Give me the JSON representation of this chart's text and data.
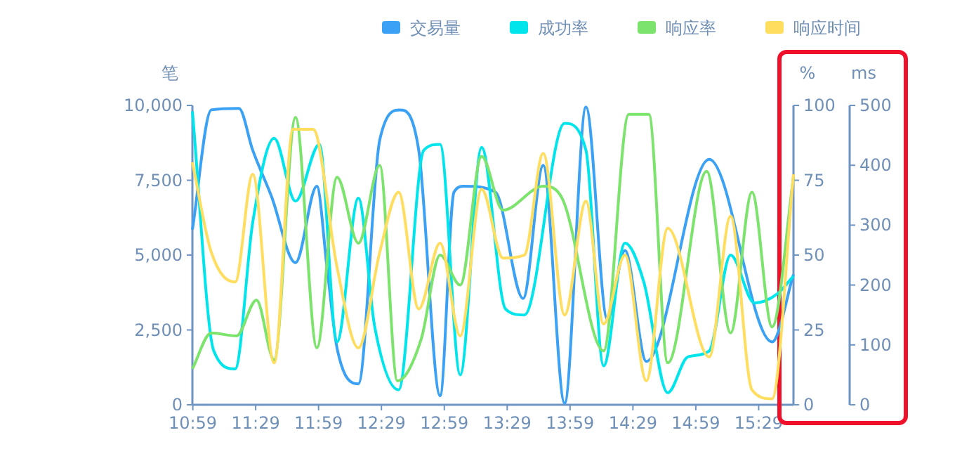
{
  "chart_data": {
    "type": "line",
    "ylabel": "笔",
    "y2label": "%",
    "y3label": "ms",
    "legend": "top",
    "marker": "none",
    "grid": false,
    "xlim": [
      10.98,
      15.76
    ],
    "xticks": [
      {
        "value": 10.9833,
        "label": "10:59"
      },
      {
        "value": 11.4833,
        "label": "11:29"
      },
      {
        "value": 11.9833,
        "label": "11:59"
      },
      {
        "value": 12.4833,
        "label": "12:29"
      },
      {
        "value": 12.9833,
        "label": "12:59"
      },
      {
        "value": 13.4833,
        "label": "13:29"
      },
      {
        "value": 13.9833,
        "label": "13:59"
      },
      {
        "value": 14.4833,
        "label": "14:29"
      },
      {
        "value": 14.9833,
        "label": "14:59"
      },
      {
        "value": 15.4833,
        "label": "15:29"
      }
    ],
    "ylim": [
      0,
      10000
    ],
    "yticks": [
      {
        "value": 0,
        "label": "0"
      },
      {
        "value": 2500,
        "label": "2,500"
      },
      {
        "value": 5000,
        "label": "5,000"
      },
      {
        "value": 7500,
        "label": "7,500"
      },
      {
        "value": 10000,
        "label": "10,000"
      }
    ],
    "y2lim": [
      0,
      100
    ],
    "y2ticks": [
      0,
      25,
      50,
      75,
      100
    ],
    "y3lim": [
      0,
      500
    ],
    "y3ticks": [
      0,
      100,
      200,
      300,
      400,
      500
    ],
    "series": [
      {
        "name": "交易量",
        "color": "#3ba1f5",
        "x": [
          10.98,
          11.13,
          11.35,
          11.46,
          11.61,
          11.8,
          11.97,
          12.05,
          12.13,
          12.3,
          12.47,
          12.63,
          12.78,
          12.95,
          13.06,
          13.14,
          13.39,
          13.61,
          13.77,
          13.94,
          14.11,
          14.28,
          14.42,
          14.59,
          15.09,
          15.59,
          15.76
        ],
        "values": [
          5850,
          9850,
          9900,
          8500,
          6950,
          4750,
          7300,
          4600,
          1900,
          700,
          8850,
          9850,
          8500,
          300,
          7100,
          7300,
          7100,
          3550,
          8000,
          50,
          9950,
          2850,
          5150,
          1450,
          8200,
          2100,
          4350
        ]
      },
      {
        "name": "成功率",
        "color": "#00e5ec",
        "x": [
          10.98,
          11.15,
          11.32,
          11.46,
          11.63,
          11.8,
          11.99,
          12.13,
          12.3,
          12.43,
          12.62,
          12.82,
          12.95,
          13.11,
          13.28,
          13.47,
          13.62,
          13.94,
          14.11,
          14.25,
          14.42,
          14.57,
          14.76,
          14.92,
          15.09,
          15.26,
          15.45,
          15.63,
          15.76
        ],
        "values": [
          98,
          18,
          12,
          61,
          89,
          68,
          87,
          21,
          69,
          26,
          5,
          85,
          87,
          10,
          86,
          32,
          30,
          94,
          85,
          13,
          54,
          41,
          4,
          16,
          18,
          50,
          34,
          37,
          43
        ],
        "axis": "y2"
      },
      {
        "name": "响应率",
        "color": "#7ce36c",
        "x": [
          10.98,
          11.13,
          11.33,
          11.49,
          11.63,
          11.8,
          11.97,
          12.13,
          12.3,
          12.47,
          12.61,
          12.8,
          12.95,
          13.11,
          13.28,
          13.45,
          13.77,
          13.92,
          14.25,
          14.45,
          14.61,
          14.76,
          15.07,
          15.26,
          15.43,
          15.59,
          15.76
        ],
        "values": [
          12,
          24,
          23,
          35,
          15,
          96,
          19,
          76,
          54,
          80,
          8,
          22,
          50,
          40,
          83,
          65,
          73,
          69,
          18,
          97,
          97,
          14,
          78,
          24,
          71,
          26,
          76
        ],
        "axis": "y2"
      },
      {
        "name": "响应时间",
        "color": "#fedd5f",
        "x": [
          10.98,
          11.13,
          11.32,
          11.46,
          11.63,
          11.78,
          11.94,
          12.13,
          12.3,
          12.47,
          12.62,
          12.78,
          12.95,
          13.11,
          13.28,
          13.45,
          13.62,
          13.77,
          13.94,
          14.11,
          14.25,
          14.42,
          14.59,
          14.76,
          15.09,
          15.26,
          15.43,
          15.59,
          15.76
        ],
        "values": [
          405,
          255,
          205,
          385,
          70,
          460,
          460,
          230,
          95,
          255,
          355,
          160,
          270,
          115,
          360,
          245,
          250,
          420,
          150,
          340,
          135,
          250,
          40,
          295,
          80,
          315,
          25,
          10,
          385
        ],
        "axis": "y3"
      }
    ]
  }
}
